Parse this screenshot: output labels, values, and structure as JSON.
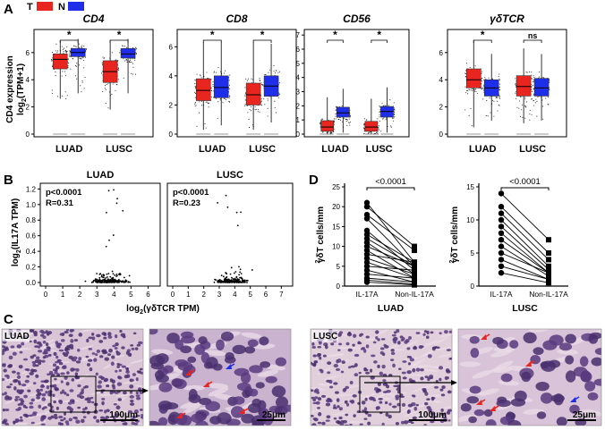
{
  "panels": {
    "A": "A",
    "B": "B",
    "C": "C",
    "D": "D"
  },
  "legend": {
    "t_label": "T",
    "n_label": "N",
    "t_color": "#e8251f",
    "n_color": "#1f2ee8"
  },
  "panel_a": {
    "ylabel_1": "CD4 expression",
    "ylabel_2": "log",
    "ylabel_sub": "2",
    "ylabel_3": "(TPM+1)",
    "categories": [
      "LUAD",
      "LUSC"
    ],
    "plots": [
      {
        "title": "CD4",
        "ticks": [
          "0",
          "2",
          "4",
          "6"
        ],
        "ymax": 7.5,
        "boxes": [
          {
            "q1": 4.8,
            "med": 5.5,
            "q3": 5.9,
            "lo": 2.6,
            "hi": 6.9
          },
          {
            "q1": 5.7,
            "med": 6.0,
            "q3": 6.3,
            "lo": 3.0,
            "hi": 7.0
          },
          {
            "q1": 3.8,
            "med": 4.6,
            "q3": 5.4,
            "lo": 1.8,
            "hi": 6.9
          },
          {
            "q1": 5.6,
            "med": 5.9,
            "q3": 6.3,
            "lo": 3.0,
            "hi": 7.0
          }
        ],
        "sig": [
          "*",
          "*"
        ]
      },
      {
        "title": "CD8",
        "ticks": [
          "0",
          "2",
          "4",
          "6"
        ],
        "ymax": 7.0,
        "boxes": [
          {
            "q1": 2.3,
            "med": 3.0,
            "q3": 3.8,
            "lo": 0.3,
            "hi": 6.3
          },
          {
            "q1": 2.5,
            "med": 3.2,
            "q3": 4.0,
            "lo": 0.6,
            "hi": 6.3
          },
          {
            "q1": 2.0,
            "med": 2.7,
            "q3": 3.5,
            "lo": 0.3,
            "hi": 6.3
          },
          {
            "q1": 2.6,
            "med": 3.3,
            "q3": 4.0,
            "lo": 0.8,
            "hi": 6.2
          }
        ],
        "sig": [
          "*",
          "*"
        ]
      },
      {
        "title": "CD56",
        "ticks": [
          "0",
          "1",
          "2",
          "3",
          "4",
          "5",
          "6",
          "7"
        ],
        "ymax": 7.2,
        "boxes": [
          {
            "q1": 0.2,
            "med": 0.5,
            "q3": 0.95,
            "lo": 0,
            "hi": 2.6
          },
          {
            "q1": 1.2,
            "med": 1.5,
            "q3": 1.9,
            "lo": 0.1,
            "hi": 3.2
          },
          {
            "q1": 0.2,
            "med": 0.5,
            "q3": 0.9,
            "lo": 0,
            "hi": 2.5
          },
          {
            "q1": 1.2,
            "med": 1.6,
            "q3": 1.95,
            "lo": 0.1,
            "hi": 3.3
          }
        ],
        "sig": [
          "*",
          "*"
        ]
      },
      {
        "title": "γδTCR",
        "ticks": [
          "0",
          "2",
          "4",
          "6"
        ],
        "ymax": 7.5,
        "boxes": [
          {
            "q1": 3.4,
            "med": 4.0,
            "q3": 4.8,
            "lo": 0.5,
            "hi": 6.9
          },
          {
            "q1": 2.8,
            "med": 3.4,
            "q3": 4.0,
            "lo": 1.0,
            "hi": 5.9
          },
          {
            "q1": 2.8,
            "med": 3.5,
            "q3": 4.3,
            "lo": 0.8,
            "hi": 6.3
          },
          {
            "q1": 2.8,
            "med": 3.4,
            "q3": 4.1,
            "lo": 1.0,
            "hi": 5.9
          }
        ],
        "sig": [
          "*",
          "ns"
        ]
      }
    ]
  },
  "panel_b": {
    "ylabel_pre": "log",
    "ylabel_sub": "2",
    "ylabel_post": "(IL17A TPM)",
    "xlabel_pre": "log",
    "xlabel_sub": "2",
    "xlabel_post": "(γδTCR TPM)",
    "yticks": [
      "0.0",
      "0.2",
      "0.4",
      "0.6",
      "0.8",
      "1.0",
      "1.2"
    ],
    "plots": [
      {
        "title": "LUAD",
        "p": "p<0.0001",
        "r": "R=0.31",
        "xticks": [
          "0",
          "1",
          "2",
          "3",
          "4",
          "5",
          "6"
        ],
        "xmax": 6.5
      },
      {
        "title": "LUSC",
        "p": "p<0.0001",
        "r": "R=0.23",
        "xticks": [
          "0",
          "1",
          "2",
          "3",
          "4",
          "5",
          "6",
          "7"
        ],
        "xmax": 7.5
      }
    ]
  },
  "panel_d": {
    "ylabel": "γδT cells/mm",
    "ylabel_sup": "2",
    "plots": [
      {
        "title": "LUAD",
        "p": "<0.0001",
        "xcats": [
          "IL-17A",
          "Non-IL-17A"
        ],
        "yticks": [
          "0",
          "5",
          "10",
          "15",
          "20",
          "25"
        ],
        "ymax": 25,
        "pairs": [
          [
            21,
            6
          ],
          [
            20,
            10
          ],
          [
            18,
            9
          ],
          [
            17,
            5
          ],
          [
            14,
            4
          ],
          [
            13,
            6
          ],
          [
            12,
            5
          ],
          [
            11,
            3
          ],
          [
            10,
            5
          ],
          [
            9,
            2
          ],
          [
            8,
            6
          ],
          [
            7,
            3
          ],
          [
            6,
            2
          ],
          [
            5,
            4
          ],
          [
            4,
            1
          ],
          [
            3,
            2
          ],
          [
            2,
            1
          ],
          [
            1.5,
            0.5
          ],
          [
            1,
            0.3
          ]
        ]
      },
      {
        "title": "LUSC",
        "p": "<0.0001",
        "xcats": [
          "IL-17A",
          "Non-IL-17A"
        ],
        "yticks": [
          "0",
          "5",
          "10",
          "15"
        ],
        "ymax": 15,
        "pairs": [
          [
            14,
            7
          ],
          [
            12,
            5
          ],
          [
            11,
            4
          ],
          [
            10,
            3
          ],
          [
            9,
            2.5
          ],
          [
            8,
            2
          ],
          [
            7,
            2
          ],
          [
            6,
            1.5
          ],
          [
            5,
            2
          ],
          [
            4,
            1
          ],
          [
            3,
            1
          ],
          [
            2,
            0.5
          ]
        ]
      }
    ]
  },
  "panel_c": {
    "images": [
      {
        "label": "LUAD",
        "scale": "100μm"
      },
      {
        "label": "",
        "scale": "25μm"
      },
      {
        "label": "LUSC",
        "scale": "100μm"
      },
      {
        "label": "",
        "scale": "25μm"
      }
    ]
  }
}
